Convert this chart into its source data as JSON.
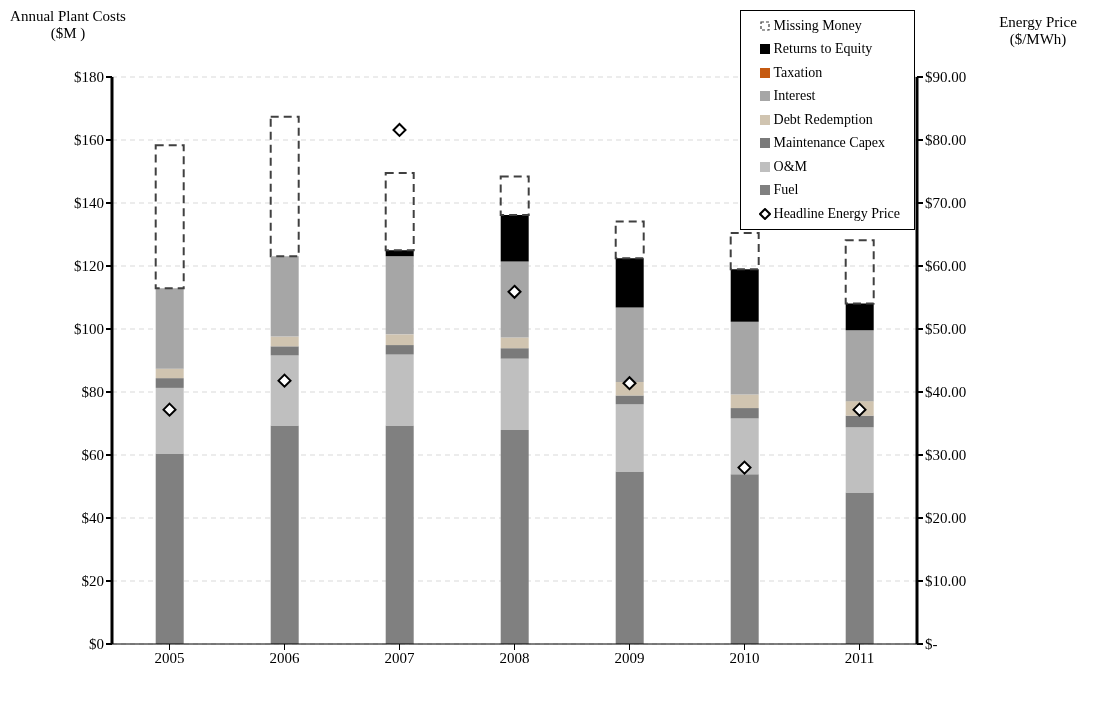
{
  "chart_data": {
    "type": "bar",
    "stacked": true,
    "ylabel": "Annual Plant Costs ($M )",
    "y2label": "Energy Price ($/MWh)",
    "categories": [
      "2005",
      "2006",
      "2007",
      "2008",
      "2009",
      "2010",
      "2011"
    ],
    "series": [
      {
        "name": "Fuel",
        "color": "#808080",
        "values": [
          60.5,
          69.4,
          69.4,
          67.9,
          54.8,
          53.9,
          48.1
        ]
      },
      {
        "name": "O&M",
        "color": "#bfbfbf",
        "values": [
          20.8,
          22.2,
          22.5,
          22.7,
          21.3,
          17.7,
          20.7
        ]
      },
      {
        "name": "Maintenance Capex",
        "color": "#7a7a7a",
        "values": [
          3.1,
          2.9,
          3.0,
          3.3,
          2.8,
          3.3,
          3.7
        ]
      },
      {
        "name": "Debt Redemption",
        "color": "#d0c4b0",
        "values": [
          3.0,
          3.1,
          3.4,
          3.4,
          4.3,
          4.3,
          4.6
        ]
      },
      {
        "name": "Interest",
        "color": "#a6a6a6",
        "values": [
          25.5,
          25.5,
          24.8,
          24.1,
          23.6,
          23.1,
          22.5
        ]
      },
      {
        "name": "Taxation",
        "color": "#c55a11",
        "values": [
          0,
          0,
          0,
          0,
          0,
          0,
          0
        ]
      },
      {
        "name": "Returns to Equity",
        "color": "#000000",
        "values": [
          0,
          0,
          1.9,
          14.8,
          15.7,
          16.7,
          8.5
        ]
      },
      {
        "name": "Missing Money",
        "color": "#404040",
        "line_style": "dashed",
        "values": [
          45.4,
          44.3,
          24.5,
          12.2,
          11.6,
          11.5,
          20.1
        ]
      },
      {
        "name": "Headline Energy Price",
        "type": "scatter",
        "axis": "y2",
        "marker": "diamond",
        "color": "#000000",
        "values": [
          37.2,
          41.8,
          81.6,
          55.9,
          41.4,
          28.0,
          37.2
        ]
      }
    ],
    "ylim": [
      0,
      180
    ],
    "yticks": [
      {
        "value": 0,
        "label": "$0"
      },
      {
        "value": 20,
        "label": "$20"
      },
      {
        "value": 40,
        "label": "$40"
      },
      {
        "value": 60,
        "label": "$60"
      },
      {
        "value": 80,
        "label": "$80"
      },
      {
        "value": 100,
        "label": "$100"
      },
      {
        "value": 120,
        "label": "$120"
      },
      {
        "value": 140,
        "label": "$140"
      },
      {
        "value": 160,
        "label": "$160"
      },
      {
        "value": 180,
        "label": "$180"
      }
    ],
    "y2lim": [
      0,
      90
    ],
    "y2ticks": [
      {
        "value": 0,
        "label": "$-"
      },
      {
        "value": 10,
        "label": "$10.00"
      },
      {
        "value": 20,
        "label": "$20.00"
      },
      {
        "value": 30,
        "label": "$30.00"
      },
      {
        "value": 40,
        "label": "$40.00"
      },
      {
        "value": 50,
        "label": "$50.00"
      },
      {
        "value": 60,
        "label": "$60.00"
      },
      {
        "value": 70,
        "label": "$70.00"
      },
      {
        "value": 80,
        "label": "$80.00"
      },
      {
        "value": 90,
        "label": "$90.00"
      }
    ],
    "grid": "y",
    "legend": "top right"
  }
}
